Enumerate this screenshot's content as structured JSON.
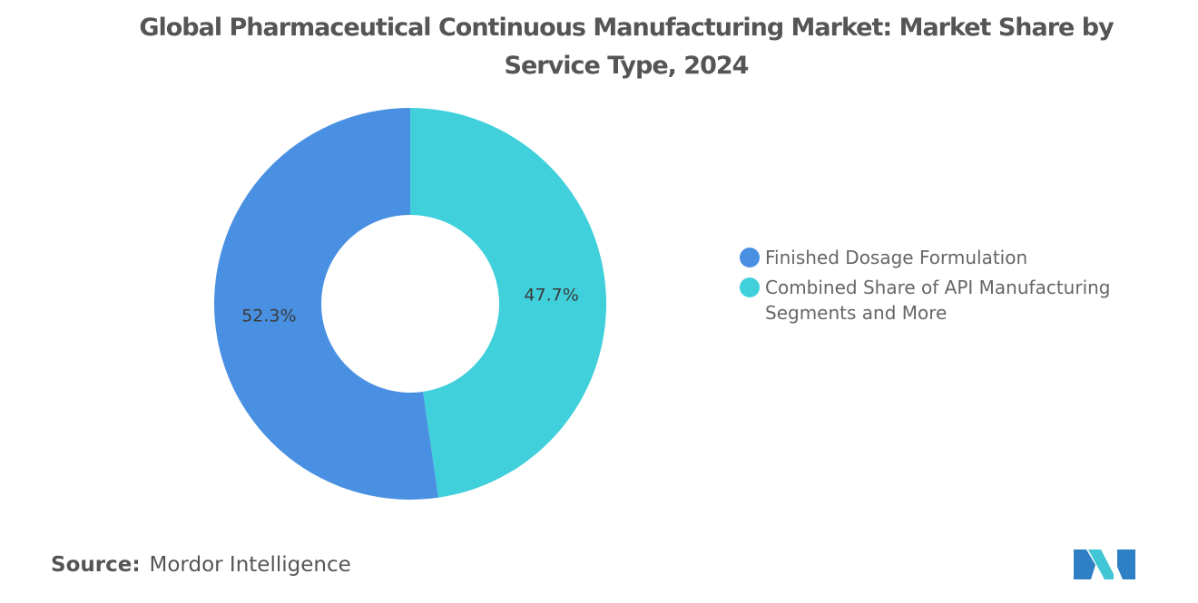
{
  "chart_data": {
    "type": "pie",
    "style": "donut",
    "title": "Global Pharmaceutical Continuous Manufacturing Market: Market Share by Service Type, 2024",
    "categories": [
      "Finished Dosage Formulation",
      "Combined Share of API Manufacturing Segments and More"
    ],
    "values": [
      52.3,
      47.7
    ],
    "value_labels": [
      "52.3%",
      "47.7%"
    ],
    "colors": [
      "#4a90e2",
      "#40d0db"
    ],
    "legend_position": "right"
  },
  "source": {
    "label": "Source:",
    "text": "Mordor Intelligence"
  },
  "logo": {
    "icon": "mordor-intelligence-logo",
    "colors": [
      "#2f7fc4",
      "#40c6d4"
    ]
  }
}
